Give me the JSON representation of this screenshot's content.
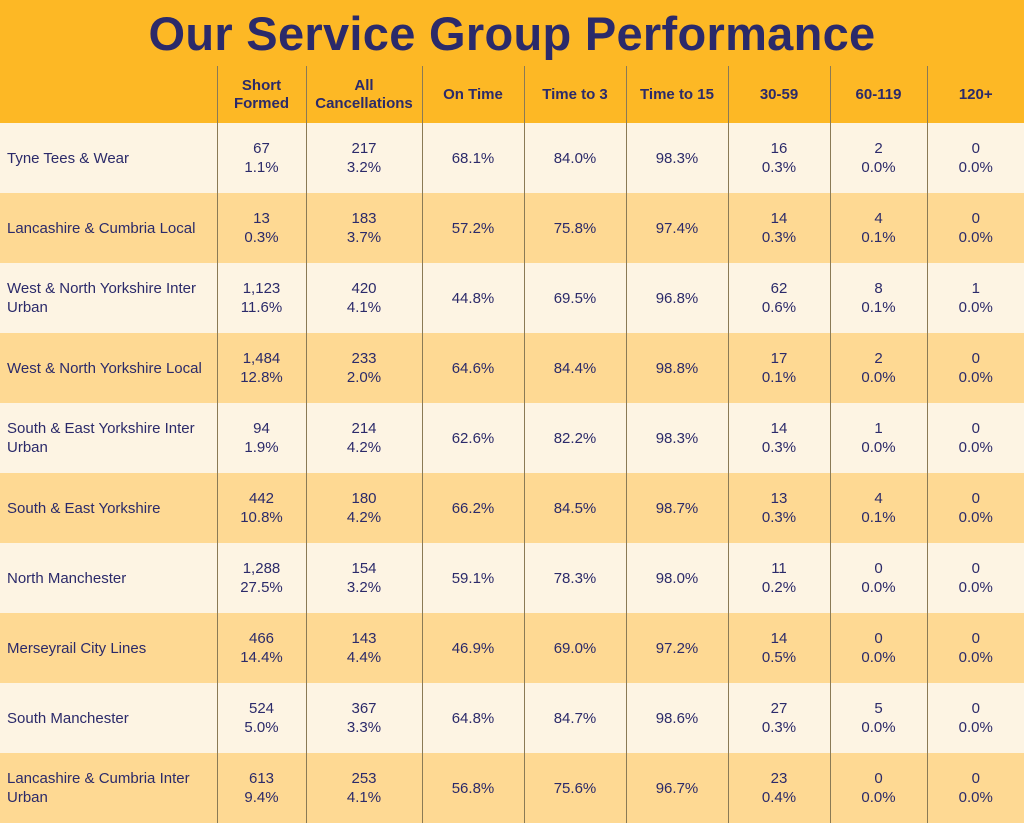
{
  "title": "Our Service Group Performance",
  "columns": [
    "",
    "Short Formed",
    "All Cancellations",
    "On Time",
    "Time to 3",
    "Time to 15",
    "30-59",
    "60-119",
    "120+"
  ],
  "header": {
    "short_formed": [
      "Short",
      "Formed"
    ],
    "all_cancellations": [
      "All",
      "Cancellations"
    ]
  },
  "rows": [
    {
      "name": "Tyne Tees & Wear",
      "short_n": "67",
      "short_p": "1.1%",
      "canc_n": "217",
      "canc_p": "3.2%",
      "on_time": "68.1%",
      "t3": "84.0%",
      "t15": "98.3%",
      "d30_n": "16",
      "d30_p": "0.3%",
      "d60_n": "2",
      "d60_p": "0.0%",
      "d120_n": "0",
      "d120_p": "0.0%"
    },
    {
      "name": "Lancashire & Cumbria Local",
      "short_n": "13",
      "short_p": "0.3%",
      "canc_n": "183",
      "canc_p": "3.7%",
      "on_time": "57.2%",
      "t3": "75.8%",
      "t15": "97.4%",
      "d30_n": "14",
      "d30_p": "0.3%",
      "d60_n": "4",
      "d60_p": "0.1%",
      "d120_n": "0",
      "d120_p": "0.0%"
    },
    {
      "name": "West & North Yorkshire Inter Urban",
      "short_n": "1,123",
      "short_p": "11.6%",
      "canc_n": "420",
      "canc_p": "4.1%",
      "on_time": "44.8%",
      "t3": "69.5%",
      "t15": "96.8%",
      "d30_n": "62",
      "d30_p": "0.6%",
      "d60_n": "8",
      "d60_p": "0.1%",
      "d120_n": "1",
      "d120_p": "0.0%"
    },
    {
      "name": "West & North Yorkshire Local",
      "short_n": "1,484",
      "short_p": "12.8%",
      "canc_n": "233",
      "canc_p": "2.0%",
      "on_time": "64.6%",
      "t3": "84.4%",
      "t15": "98.8%",
      "d30_n": "17",
      "d30_p": "0.1%",
      "d60_n": "2",
      "d60_p": "0.0%",
      "d120_n": "0",
      "d120_p": "0.0%"
    },
    {
      "name": "South & East Yorkshire Inter Urban",
      "short_n": "94",
      "short_p": "1.9%",
      "canc_n": "214",
      "canc_p": "4.2%",
      "on_time": "62.6%",
      "t3": "82.2%",
      "t15": "98.3%",
      "d30_n": "14",
      "d30_p": "0.3%",
      "d60_n": "1",
      "d60_p": "0.0%",
      "d120_n": "0",
      "d120_p": "0.0%"
    },
    {
      "name": "South & East Yorkshire",
      "short_n": "442",
      "short_p": "10.8%",
      "canc_n": "180",
      "canc_p": "4.2%",
      "on_time": "66.2%",
      "t3": "84.5%",
      "t15": "98.7%",
      "d30_n": "13",
      "d30_p": "0.3%",
      "d60_n": "4",
      "d60_p": "0.1%",
      "d120_n": "0",
      "d120_p": "0.0%"
    },
    {
      "name": "North Manchester",
      "short_n": "1,288",
      "short_p": "27.5%",
      "canc_n": "154",
      "canc_p": "3.2%",
      "on_time": "59.1%",
      "t3": "78.3%",
      "t15": "98.0%",
      "d30_n": "11",
      "d30_p": "0.2%",
      "d60_n": "0",
      "d60_p": "0.0%",
      "d120_n": "0",
      "d120_p": "0.0%"
    },
    {
      "name": "Merseyrail City Lines",
      "short_n": "466",
      "short_p": "14.4%",
      "canc_n": "143",
      "canc_p": "4.4%",
      "on_time": "46.9%",
      "t3": "69.0%",
      "t15": "97.2%",
      "d30_n": "14",
      "d30_p": "0.5%",
      "d60_n": "0",
      "d60_p": "0.0%",
      "d120_n": "0",
      "d120_p": "0.0%"
    },
    {
      "name": "South Manchester",
      "short_n": "524",
      "short_p": "5.0%",
      "canc_n": "367",
      "canc_p": "3.3%",
      "on_time": "64.8%",
      "t3": "84.7%",
      "t15": "98.6%",
      "d30_n": "27",
      "d30_p": "0.3%",
      "d60_n": "5",
      "d60_p": "0.0%",
      "d120_n": "0",
      "d120_p": "0.0%"
    },
    {
      "name": "Lancashire & Cumbria Inter Urban",
      "short_n": "613",
      "short_p": "9.4%",
      "canc_n": "253",
      "canc_p": "4.1%",
      "on_time": "56.8%",
      "t3": "75.6%",
      "t15": "96.7%",
      "d30_n": "23",
      "d30_p": "0.4%",
      "d60_n": "0",
      "d60_p": "0.0%",
      "d120_n": "0",
      "d120_p": "0.0%"
    }
  ],
  "colors": {
    "header_bg": "#fdb825",
    "text": "#2b2a6a",
    "row_light": "#fdf4e3",
    "row_dark": "#fed993"
  }
}
